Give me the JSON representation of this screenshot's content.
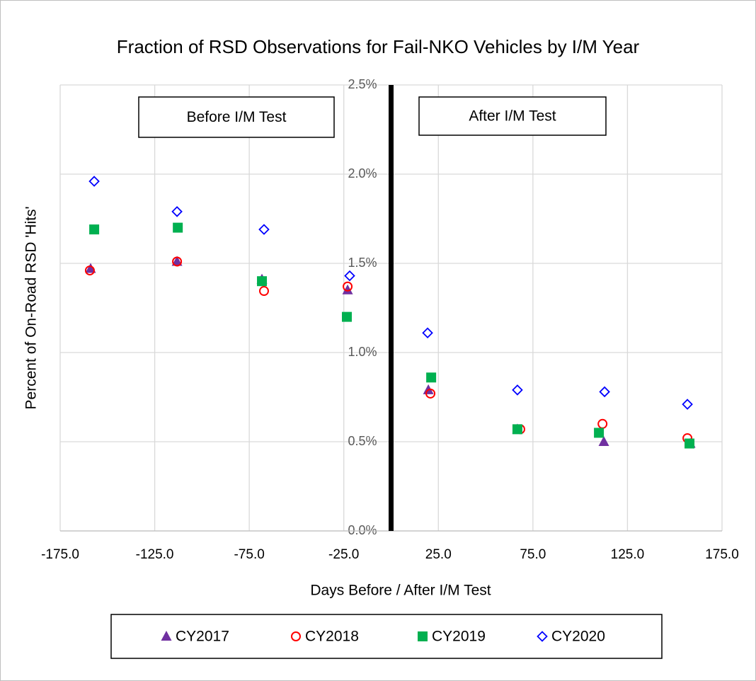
{
  "chart_data": {
    "type": "scatter",
    "title": "Fraction of RSD Observations for Fail-NKO Vehicles by I/M Year",
    "x_label": "Days Before / After I/M Test",
    "y_label": "Percent of On-Road RSD 'Hits'",
    "annotations": [
      "Before I/M Test",
      "After I/M Test"
    ],
    "vline": 0,
    "xlim": [
      -175,
      175
    ],
    "xticks": [
      {
        "value": -175,
        "label": "-175.0"
      },
      {
        "value": -125,
        "label": "-125.0"
      },
      {
        "value": -75,
        "label": "-75.0"
      },
      {
        "value": -25,
        "label": "-25.0"
      },
      {
        "value": 25,
        "label": "25.0"
      },
      {
        "value": 75,
        "label": "75.0"
      },
      {
        "value": 125,
        "label": "125.0"
      },
      {
        "value": 175,
        "label": "175.0"
      }
    ],
    "ylim": [
      0,
      2.5
    ],
    "yticks": [
      {
        "value": 0,
        "label": "0.0%"
      },
      {
        "value": 0.5,
        "label": "0.5%"
      },
      {
        "value": 1,
        "label": "1.0%"
      },
      {
        "value": 1.5,
        "label": "1.5%"
      },
      {
        "value": 2,
        "label": "2.0%"
      },
      {
        "value": 2.5,
        "label": "2.5%"
      }
    ],
    "grid": true,
    "legend": "bottom",
    "series": [
      {
        "name": "CY2017",
        "color": "#7030a0",
        "marker": "triangle",
        "x": [
          -158.9,
          -113.2,
          -68.3,
          -23.0,
          19.7,
          66.8,
          112.5,
          158.2
        ],
        "values": [
          1.47,
          1.51,
          1.41,
          1.35,
          0.79,
          0.57,
          0.5,
          0.49
        ]
      },
      {
        "name": "CY2018",
        "color": "#ff0000",
        "marker": "circle",
        "x": [
          -159.3,
          -113.2,
          -67.2,
          -23.0,
          20.8,
          68.3,
          111.8,
          156.7
        ],
        "values": [
          1.46,
          1.51,
          1.345,
          1.37,
          0.77,
          0.57,
          0.6,
          0.52
        ]
      },
      {
        "name": "CY2019",
        "color": "#00b050",
        "marker": "square",
        "x": [
          -157.0,
          -112.8,
          -68.3,
          -23.4,
          21.2,
          66.8,
          109.9,
          157.8
        ],
        "values": [
          1.69,
          1.7,
          1.4,
          1.2,
          0.86,
          0.57,
          0.55,
          0.49
        ]
      },
      {
        "name": "CY2020",
        "color": "#0000ff",
        "marker": "diamond",
        "x": [
          -157.0,
          -113.2,
          -67.2,
          -21.9,
          19.3,
          66.8,
          112.9,
          156.7
        ],
        "values": [
          1.96,
          1.79,
          1.69,
          1.43,
          1.11,
          0.79,
          0.78,
          0.71
        ]
      }
    ]
  }
}
